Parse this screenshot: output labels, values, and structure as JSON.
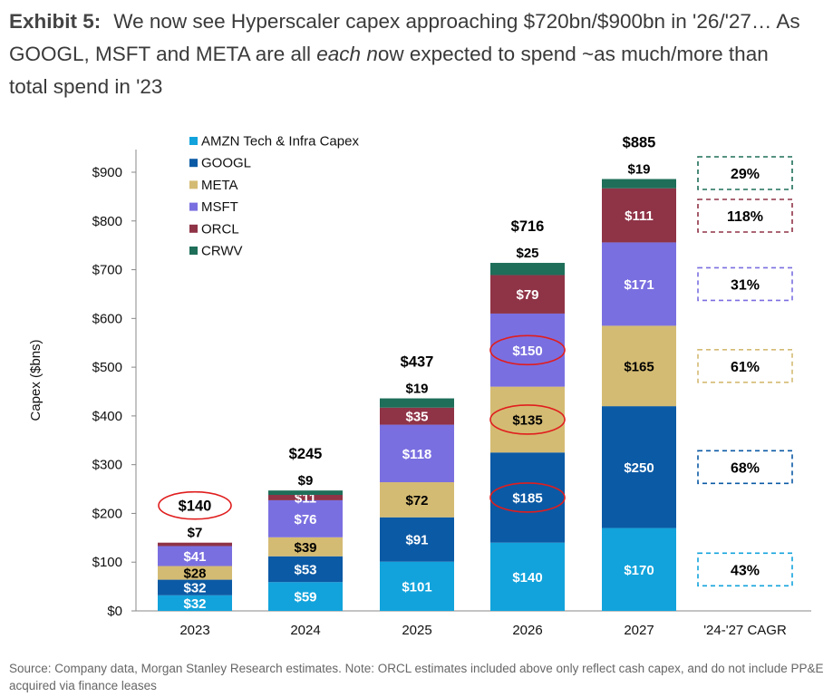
{
  "title": {
    "exhibit": "Exhibit 5:",
    "text_plain_1": "We now see Hyperscaler capex approaching $720bn/$900bn in '26/'27… As GOOGL, MSFT and META are all ",
    "text_italic": "each n",
    "text_plain_2": "ow expected to spend ~as much/more than total spend in '23"
  },
  "source_note": "Source: Company data, Morgan Stanley Research estimates. Note: ORCL estimates included above only reflect cash capex, and do not include PP&E acquired via finance leases",
  "chart_data": {
    "type": "bar",
    "stacked": true,
    "ylabel": "Capex ($bns)",
    "ylim": [
      0,
      900
    ],
    "yticks": [
      0,
      100,
      200,
      300,
      400,
      500,
      600,
      700,
      800,
      900
    ],
    "ytick_labels": [
      "$0",
      "$100",
      "$200",
      "$300",
      "$400",
      "$500",
      "$600",
      "$700",
      "$800",
      "$900"
    ],
    "categories": [
      "2023",
      "2024",
      "2025",
      "2026",
      "2027"
    ],
    "extra_category": "'24-'27 CAGR",
    "legend_position": "top-left",
    "series": [
      {
        "name": "AMZN Tech & Infra Capex",
        "color": "#12a3dc",
        "values": [
          32,
          59,
          101,
          140,
          170
        ],
        "labels": [
          "$32",
          "$59",
          "$101",
          "$140",
          "$170"
        ],
        "cagr": "43%"
      },
      {
        "name": "GOOGL",
        "color": "#0b5aa5",
        "values": [
          32,
          53,
          91,
          185,
          250
        ],
        "labels": [
          "$32",
          "$53",
          "$91",
          "$185",
          "$250"
        ],
        "cagr": "68%"
      },
      {
        "name": "META",
        "color": "#d4bb73",
        "values": [
          28,
          39,
          72,
          135,
          165
        ],
        "labels": [
          "$28",
          "$39",
          "$72",
          "$135",
          "$165"
        ],
        "cagr": "61%"
      },
      {
        "name": "MSFT",
        "color": "#7a6fe0",
        "values": [
          41,
          76,
          118,
          150,
          171
        ],
        "labels": [
          "$41",
          "$76",
          "$118",
          "$150",
          "$171"
        ],
        "cagr": "31%"
      },
      {
        "name": "ORCL",
        "color": "#8f3346",
        "values": [
          7,
          11,
          35,
          79,
          111
        ],
        "labels": [
          "",
          "$11",
          "$35",
          "$79",
          "$111"
        ],
        "cagr": "118%"
      },
      {
        "name": "CRWV",
        "color": "#1e6e59",
        "values": [
          0,
          9,
          19,
          25,
          19
        ],
        "labels": [
          "",
          "",
          "",
          "",
          ""
        ],
        "cagr": "29%"
      }
    ],
    "top_labels": [
      "$7",
      "$9",
      "$19",
      "$25",
      "$19"
    ],
    "totals": [
      140,
      245,
      437,
      716,
      885
    ],
    "total_labels": [
      "$140",
      "$245",
      "$437",
      "$716",
      "$885"
    ],
    "highlighted": [
      "2023 total $140",
      "2026 GOOGL $185",
      "2026 META $135",
      "2026 MSFT $150"
    ]
  }
}
